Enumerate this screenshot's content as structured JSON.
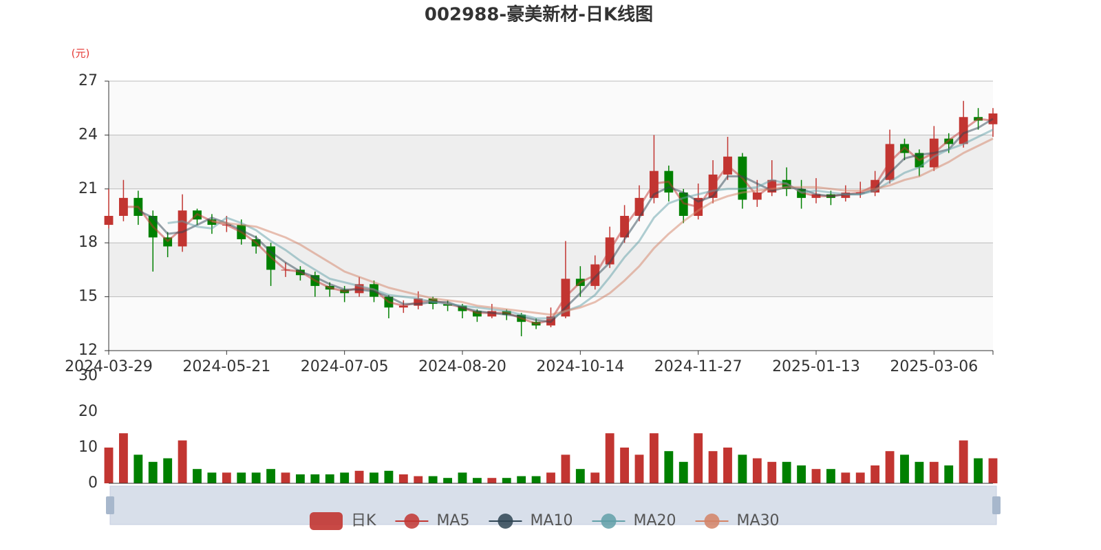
{
  "chart_data": [
    {
      "type": "candlestick",
      "title": "002988-豪美新材-日K线图",
      "y_unit": "(元)",
      "categories": [
        "2024-03-29",
        null,
        null,
        null,
        null,
        null,
        null,
        null,
        "2024-05-21",
        null,
        null,
        null,
        null,
        null,
        null,
        null,
        "2024-07-05",
        null,
        null,
        null,
        null,
        null,
        null,
        null,
        "2024-08-20",
        null,
        null,
        null,
        null,
        null,
        null,
        null,
        "2024-10-14",
        null,
        null,
        null,
        null,
        null,
        null,
        null,
        "2024-11-27",
        null,
        null,
        null,
        null,
        null,
        null,
        null,
        "2025-01-13",
        null,
        null,
        null,
        null,
        null,
        null,
        null,
        "2025-03-06",
        null,
        null,
        null,
        null
      ],
      "ylim": [
        12,
        27
      ],
      "yticks": [
        12,
        15,
        18,
        21,
        24,
        27
      ],
      "split_area": true,
      "series": [
        {
          "name": "日K",
          "type": "candlestick",
          "up_color": "#c23531",
          "down_color": "#008000",
          "values": [
            [
              19.0,
              19.5,
              18.8,
              21.0
            ],
            [
              19.5,
              20.5,
              19.2,
              21.5
            ],
            [
              20.5,
              19.5,
              19.0,
              20.9
            ],
            [
              19.5,
              18.3,
              16.4,
              19.8
            ],
            [
              18.3,
              17.8,
              17.2,
              18.6
            ],
            [
              17.8,
              19.8,
              17.5,
              20.7
            ],
            [
              19.8,
              19.3,
              19.0,
              19.9
            ],
            [
              19.3,
              19.0,
              18.5,
              19.6
            ],
            [
              19.0,
              19.0,
              18.6,
              19.5
            ],
            [
              19.0,
              18.2,
              17.9,
              19.3
            ],
            [
              18.2,
              17.8,
              17.4,
              18.4
            ],
            [
              17.8,
              16.5,
              15.6,
              18.0
            ],
            [
              16.5,
              16.5,
              16.1,
              16.9
            ],
            [
              16.5,
              16.2,
              15.9,
              16.7
            ],
            [
              16.2,
              15.6,
              15.0,
              16.4
            ],
            [
              15.6,
              15.4,
              15.0,
              15.8
            ],
            [
              15.4,
              15.2,
              14.7,
              15.6
            ],
            [
              15.2,
              15.7,
              15.0,
              16.1
            ],
            [
              15.7,
              15.0,
              14.7,
              15.9
            ],
            [
              15.0,
              14.4,
              13.8,
              15.1
            ],
            [
              14.4,
              14.5,
              14.1,
              14.8
            ],
            [
              14.5,
              14.9,
              14.3,
              15.3
            ],
            [
              14.9,
              14.6,
              14.3,
              15.0
            ],
            [
              14.6,
              14.5,
              14.2,
              14.8
            ],
            [
              14.5,
              14.2,
              13.8,
              14.6
            ],
            [
              14.2,
              13.9,
              13.6,
              14.3
            ],
            [
              13.9,
              14.2,
              13.8,
              14.6
            ],
            [
              14.2,
              14.0,
              13.7,
              14.3
            ],
            [
              14.0,
              13.6,
              12.8,
              14.1
            ],
            [
              13.6,
              13.4,
              13.2,
              13.8
            ],
            [
              13.4,
              13.9,
              13.3,
              14.4
            ],
            [
              13.9,
              16.0,
              13.8,
              18.1
            ],
            [
              16.0,
              15.6,
              15.0,
              16.7
            ],
            [
              15.6,
              16.8,
              15.4,
              17.3
            ],
            [
              16.8,
              18.3,
              16.6,
              18.9
            ],
            [
              18.3,
              19.5,
              18.0,
              20.1
            ],
            [
              19.5,
              20.5,
              19.2,
              21.2
            ],
            [
              20.5,
              22.0,
              20.2,
              24.0
            ],
            [
              22.0,
              20.8,
              20.3,
              22.3
            ],
            [
              20.8,
              19.5,
              19.1,
              21.0
            ],
            [
              19.5,
              20.5,
              19.3,
              21.3
            ],
            [
              20.5,
              21.8,
              20.2,
              22.6
            ],
            [
              21.8,
              22.8,
              21.5,
              23.9
            ],
            [
              22.8,
              20.4,
              19.9,
              23.0
            ],
            [
              20.4,
              20.8,
              20.0,
              21.5
            ],
            [
              20.8,
              21.5,
              20.6,
              22.6
            ],
            [
              21.5,
              21.0,
              20.6,
              22.2
            ],
            [
              21.0,
              20.5,
              19.9,
              21.5
            ],
            [
              20.5,
              20.7,
              20.2,
              21.6
            ],
            [
              20.7,
              20.5,
              20.1,
              20.9
            ],
            [
              20.5,
              20.8,
              20.3,
              21.2
            ],
            [
              20.8,
              20.8,
              20.5,
              21.4
            ],
            [
              20.8,
              21.5,
              20.6,
              22.0
            ],
            [
              21.5,
              23.5,
              21.3,
              24.3
            ],
            [
              23.5,
              23.0,
              22.6,
              23.8
            ],
            [
              23.0,
              22.2,
              21.7,
              23.2
            ],
            [
              22.2,
              23.8,
              22.0,
              24.5
            ],
            [
              23.8,
              23.5,
              23.0,
              24.1
            ],
            [
              23.5,
              25.0,
              23.3,
              25.9
            ],
            [
              25.0,
              24.8,
              24.3,
              25.5
            ],
            [
              24.6,
              25.2,
              23.9,
              25.5
            ]
          ]
        },
        {
          "name": "MA5",
          "type": "line",
          "color": "#c23531",
          "values": [
            null,
            20.0,
            20.0,
            18.9,
            18.1,
            18.8,
            19.6,
            19.2,
            19.0,
            18.6,
            18.0,
            17.2,
            16.5,
            16.4,
            15.9,
            15.5,
            15.3,
            15.5,
            15.4,
            14.7,
            14.5,
            14.7,
            14.8,
            14.6,
            14.4,
            14.1,
            14.1,
            14.1,
            13.8,
            13.5,
            13.7,
            15.0,
            15.8,
            16.2,
            17.6,
            18.9,
            20.0,
            21.3,
            21.4,
            20.2,
            20.0,
            21.2,
            22.3,
            21.6,
            20.6,
            21.2,
            21.3,
            20.8,
            20.6,
            20.6,
            20.7,
            20.8,
            21.2,
            22.5,
            23.3,
            22.6,
            23.0,
            23.7,
            24.3,
            24.9,
            24.8
          ]
        },
        {
          "name": "MA10",
          "type": "line",
          "color": "#2f4554",
          "values": [
            null,
            null,
            19.8,
            19.4,
            18.5,
            18.6,
            19.0,
            19.4,
            19.1,
            18.7,
            18.3,
            17.5,
            16.9,
            16.4,
            16.1,
            15.7,
            15.4,
            15.4,
            15.3,
            15.0,
            14.6,
            14.6,
            14.7,
            14.7,
            14.4,
            14.2,
            14.1,
            14.0,
            13.9,
            13.7,
            13.6,
            14.4,
            15.2,
            16.1,
            16.9,
            18.2,
            19.4,
            20.7,
            21.1,
            20.8,
            20.3,
            20.6,
            21.7,
            21.7,
            21.3,
            20.9,
            21.1,
            21.0,
            20.7,
            20.6,
            20.7,
            20.7,
            21.0,
            21.9,
            22.7,
            22.9,
            23.0,
            23.2,
            24.1,
            24.4,
            24.9
          ]
        },
        {
          "name": "MA20",
          "type": "line",
          "color": "#61a0a8",
          "values": [
            null,
            null,
            null,
            null,
            19.1,
            19.2,
            18.9,
            18.8,
            19.4,
            19.1,
            18.7,
            18.1,
            17.6,
            17.0,
            16.5,
            16.0,
            15.8,
            15.6,
            15.4,
            15.1,
            15.0,
            14.9,
            14.7,
            14.6,
            14.5,
            14.4,
            14.3,
            14.2,
            14.0,
            13.8,
            13.8,
            14.2,
            14.5,
            15.1,
            16.1,
            17.2,
            18.1,
            19.4,
            20.2,
            20.5,
            20.7,
            20.9,
            21.0,
            21.0,
            21.1,
            21.5,
            21.3,
            20.8,
            20.9,
            20.8,
            20.7,
            20.7,
            20.9,
            21.4,
            21.9,
            22.2,
            22.8,
            23.2,
            23.5,
            23.9,
            24.3
          ]
        },
        {
          "name": "MA30",
          "type": "line",
          "color": "#d48265",
          "values": [
            null,
            null,
            null,
            null,
            null,
            null,
            null,
            19.2,
            19.1,
            19.0,
            18.9,
            18.6,
            18.3,
            17.9,
            17.4,
            16.9,
            16.4,
            16.1,
            15.8,
            15.5,
            15.3,
            15.1,
            14.9,
            14.8,
            14.7,
            14.5,
            14.4,
            14.3,
            14.2,
            14.1,
            14.0,
            14.2,
            14.4,
            14.7,
            15.2,
            15.9,
            16.7,
            17.7,
            18.5,
            19.2,
            19.8,
            20.3,
            20.6,
            20.8,
            20.9,
            21.0,
            21.1,
            21.1,
            21.1,
            21.0,
            20.9,
            20.9,
            21.0,
            21.2,
            21.5,
            21.7,
            22.1,
            22.5,
            23.0,
            23.4,
            23.8
          ]
        }
      ]
    },
    {
      "type": "bar",
      "ylim": [
        0,
        30
      ],
      "yticks": [
        0,
        10,
        20,
        30
      ],
      "values": [
        10,
        14,
        8,
        6,
        7,
        12,
        4,
        3,
        3,
        3,
        3,
        4,
        3,
        2.5,
        2.5,
        2.5,
        3,
        3.5,
        3,
        3.5,
        2.5,
        2,
        2,
        1.5,
        3,
        1.5,
        1.5,
        1.5,
        2,
        2,
        3,
        8,
        4,
        3,
        14,
        10,
        8,
        14,
        9,
        6,
        14,
        9,
        10,
        8,
        7,
        6,
        6,
        5,
        4,
        4,
        3,
        3,
        5,
        9,
        8,
        6,
        6,
        5,
        12,
        7,
        7
      ]
    }
  ]
}
